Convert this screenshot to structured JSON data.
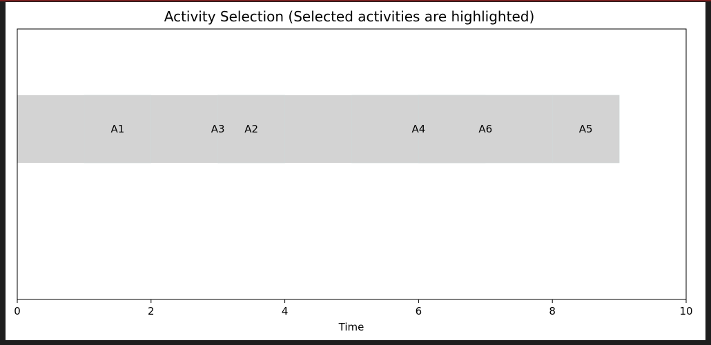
{
  "chart_data": {
    "type": "bar",
    "orientation": "horizontal",
    "title": "Activity Selection (Selected activities are highlighted)",
    "xlabel": "Time",
    "ylabel": "",
    "xlim": [
      0,
      10
    ],
    "x_ticks": [
      "0",
      "2",
      "4",
      "6",
      "8",
      "10"
    ],
    "y_ticks": [],
    "grid": false,
    "legend": false,
    "bar_color": "#d3d3d3",
    "activities": [
      {
        "name": "A1",
        "start": 1,
        "end": 2
      },
      {
        "name": "A3",
        "start": 3,
        "end": 3
      },
      {
        "name": "A2",
        "start": 3,
        "end": 4
      },
      {
        "name": "A4",
        "start": 5,
        "end": 7
      },
      {
        "name": "A6",
        "start": 6,
        "end": 8
      },
      {
        "name": "A5",
        "start": 8,
        "end": 9
      }
    ],
    "filled_span": [
      0,
      9
    ]
  }
}
